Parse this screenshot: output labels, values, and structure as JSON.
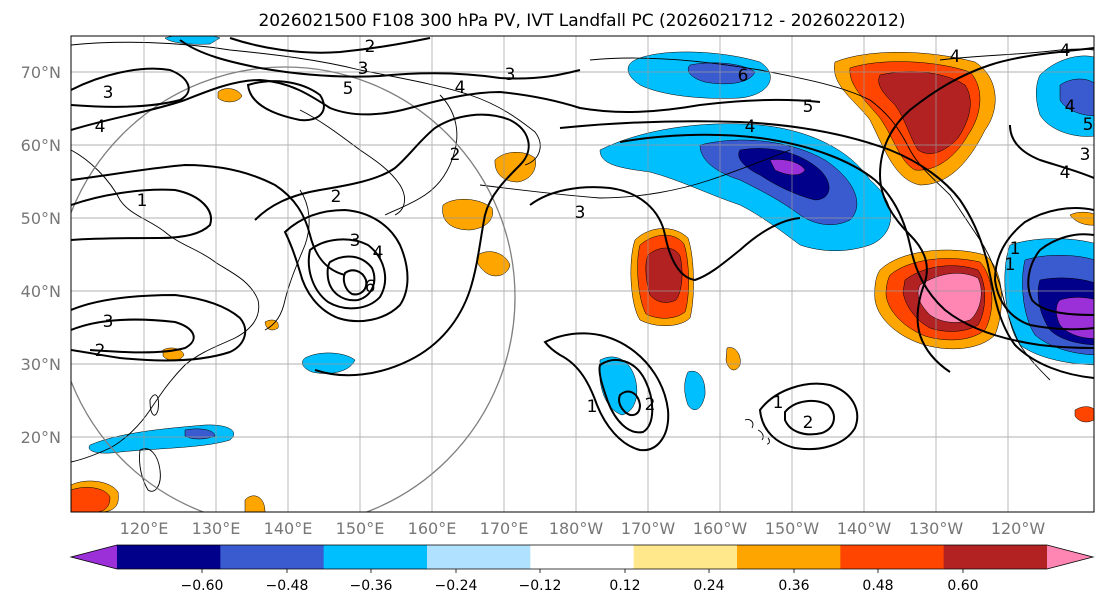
{
  "title": "2026021500 F108 300 hPa PV, IVT Landfall PC (2026021712 - 2026022012)",
  "map": {
    "lon_range": [
      110,
      252
    ],
    "lat_range": [
      10,
      75
    ],
    "lat_ticks": [
      "70°N",
      "60°N",
      "50°N",
      "40°N",
      "30°N",
      "20°N"
    ],
    "lon_ticks": [
      "120°E",
      "130°E",
      "140°E",
      "150°E",
      "160°E",
      "170°E",
      "180°W",
      "170°W",
      "160°W",
      "150°W",
      "140°W",
      "130°W",
      "120°W"
    ]
  },
  "colorbar": {
    "tick_labels": [
      "−0.60",
      "−0.48",
      "−0.36",
      "−0.24",
      "−0.12",
      "0.12",
      "0.24",
      "0.36",
      "0.48",
      "0.60"
    ],
    "colors": [
      "#9b30d9",
      "#00008b",
      "#3a5bd0",
      "#00bfff",
      "#b0e2ff",
      "#ffffff",
      "#ffe88c",
      "#ffa500",
      "#ff4500",
      "#b22222",
      "#ff85b3"
    ],
    "extend": "both"
  },
  "contour_labels": {
    "pv": [
      "2",
      "3",
      "3",
      "4",
      "5",
      "4",
      "6",
      "5",
      "4",
      "4",
      "4",
      "4",
      "3",
      "2",
      "3",
      "3",
      "4",
      "6",
      "3",
      "2",
      "2",
      "1",
      "1",
      "2",
      "1",
      "2",
      "1",
      "1",
      "4",
      "3",
      "5"
    ]
  }
}
